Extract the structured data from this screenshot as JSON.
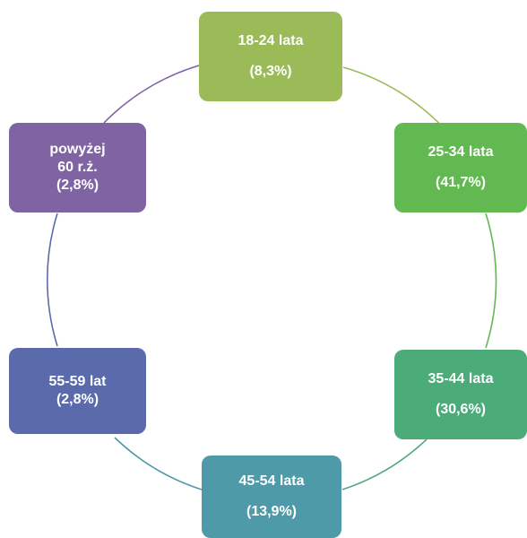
{
  "diagram": {
    "nodes": [
      {
        "id": "18-24",
        "label": "18-24 lata",
        "value": "(8,3%)",
        "color": "#9bbb59"
      },
      {
        "id": "25-34",
        "label": "25-34 lata",
        "value": "(41,7%)",
        "color": "#62b851"
      },
      {
        "id": "35-44",
        "label": "35-44 lata",
        "value": "(30,6%)",
        "color": "#4bab79"
      },
      {
        "id": "45-54",
        "label": "45-54 lata",
        "value": "(13,9%)",
        "color": "#4f9aa8"
      },
      {
        "id": "55-59",
        "label": "55-59 lat",
        "value": "(2,8%)",
        "color": "#5a6aab"
      },
      {
        "id": "60",
        "label": "powyżej",
        "label_line2": "60 r.ż.",
        "value": "(2,8%)",
        "color": "#7f63a3"
      }
    ],
    "connector_colors": [
      "#9bbb59",
      "#62b851",
      "#4bab79",
      "#4f9aa8",
      "#5a6aab",
      "#7f63a3"
    ]
  }
}
